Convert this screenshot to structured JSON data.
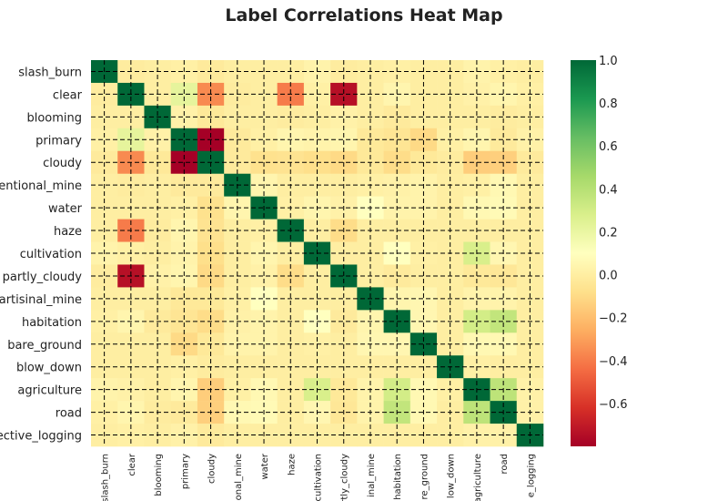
{
  "chart_data": {
    "type": "heatmap",
    "title": "Label Correlations Heat Map",
    "labels": [
      "slash_burn",
      "clear",
      "blooming",
      "primary",
      "cloudy",
      "conventional_mine",
      "water",
      "haze",
      "cultivation",
      "partly_cloudy",
      "artisinal_mine",
      "habitation",
      "bare_ground",
      "blow_down",
      "agriculture",
      "road",
      "selective_logging"
    ],
    "y_tick_labels": [
      "slash_burn",
      "clear",
      "blooming",
      "primary",
      "cloudy",
      "ventional_mine",
      "water",
      "haze",
      "cultivation",
      "partly_cloudy",
      "artisinal_mine",
      "habitation",
      "bare_ground",
      "blow_down",
      "agriculture",
      "road",
      "ective_logging"
    ],
    "x_tick_labels": [
      "slash_burn",
      "clear",
      "blooming",
      "primary",
      "cloudy",
      "onal_mine",
      "water",
      "haze",
      "cultivation",
      "rtly_cloudy",
      "inal_mine",
      "habitation",
      "re_ground",
      "low_down",
      "agriculture",
      "road",
      "e_logging"
    ],
    "matrix": [
      [
        1.0,
        -0.01,
        0.0,
        0.01,
        -0.02,
        0.0,
        0.0,
        0.0,
        0.03,
        -0.01,
        0.0,
        0.01,
        0.0,
        0.0,
        0.03,
        0.01,
        0.0
      ],
      [
        -0.01,
        1.0,
        0.0,
        0.22,
        -0.36,
        -0.01,
        0.0,
        -0.4,
        0.01,
        -0.74,
        0.0,
        0.04,
        0.0,
        0.0,
        0.02,
        0.04,
        0.01
      ],
      [
        0.0,
        0.0,
        1.0,
        0.02,
        -0.03,
        0.0,
        0.0,
        -0.01,
        0.0,
        0.02,
        0.0,
        -0.02,
        0.0,
        0.0,
        0.0,
        -0.01,
        0.0
      ],
      [
        0.01,
        0.22,
        0.02,
        1.0,
        -0.8,
        -0.02,
        0.01,
        0.04,
        0.03,
        0.04,
        -0.03,
        -0.05,
        -0.1,
        0.01,
        0.04,
        -0.02,
        0.02
      ],
      [
        -0.02,
        -0.36,
        -0.03,
        -0.8,
        1.0,
        -0.02,
        -0.07,
        -0.06,
        -0.08,
        -0.1,
        -0.03,
        -0.09,
        -0.03,
        -0.01,
        -0.15,
        -0.14,
        -0.02
      ],
      [
        0.0,
        -0.01,
        0.0,
        -0.02,
        -0.02,
        1.0,
        0.04,
        0.0,
        0.0,
        0.0,
        0.01,
        0.02,
        0.03,
        0.0,
        0.01,
        0.06,
        0.0
      ],
      [
        0.0,
        0.0,
        0.0,
        0.01,
        -0.07,
        0.04,
        1.0,
        0.01,
        0.04,
        0.02,
        0.1,
        0.03,
        0.03,
        0.0,
        0.06,
        0.07,
        0.0
      ],
      [
        0.0,
        -0.4,
        -0.01,
        0.04,
        -0.06,
        0.0,
        0.01,
        1.0,
        0.0,
        -0.09,
        0.0,
        0.0,
        0.0,
        0.0,
        0.0,
        0.0,
        0.0
      ],
      [
        0.03,
        0.01,
        0.0,
        0.03,
        -0.08,
        0.0,
        0.04,
        0.0,
        1.0,
        0.0,
        0.0,
        0.1,
        0.01,
        0.0,
        0.28,
        0.05,
        0.0
      ],
      [
        -0.01,
        -0.74,
        0.02,
        0.04,
        -0.1,
        0.0,
        0.02,
        -0.09,
        0.0,
        1.0,
        0.0,
        -0.02,
        0.0,
        0.0,
        -0.03,
        -0.04,
        0.0
      ],
      [
        0.0,
        0.0,
        0.0,
        -0.03,
        -0.03,
        0.01,
        0.1,
        0.0,
        0.0,
        0.0,
        1.0,
        0.04,
        0.05,
        0.0,
        0.03,
        0.03,
        0.0
      ],
      [
        0.01,
        0.04,
        -0.02,
        -0.05,
        -0.09,
        0.02,
        0.03,
        0.0,
        0.1,
        -0.02,
        0.04,
        1.0,
        0.05,
        0.0,
        0.3,
        0.36,
        0.0
      ],
      [
        0.0,
        0.0,
        0.0,
        -0.1,
        -0.03,
        0.03,
        0.03,
        0.0,
        0.01,
        0.0,
        0.05,
        0.05,
        1.0,
        0.0,
        0.06,
        0.06,
        0.0
      ],
      [
        0.0,
        0.0,
        0.0,
        0.01,
        -0.01,
        0.0,
        0.0,
        0.0,
        0.0,
        0.0,
        0.0,
        0.0,
        0.0,
        1.0,
        0.01,
        0.0,
        0.0
      ],
      [
        0.03,
        0.02,
        0.0,
        0.04,
        -0.15,
        0.01,
        0.06,
        0.0,
        0.28,
        -0.03,
        0.03,
        0.3,
        0.06,
        0.01,
        1.0,
        0.38,
        0.02
      ],
      [
        0.01,
        0.04,
        -0.01,
        -0.02,
        -0.14,
        0.06,
        0.07,
        0.0,
        0.05,
        -0.04,
        0.03,
        0.36,
        0.06,
        0.0,
        0.38,
        1.0,
        0.02
      ],
      [
        0.0,
        0.01,
        0.0,
        0.02,
        -0.02,
        0.0,
        0.0,
        0.0,
        0.0,
        0.0,
        0.0,
        0.0,
        0.0,
        0.0,
        0.02,
        0.02,
        1.0
      ]
    ],
    "vmin": -0.8,
    "vmax": 1.0,
    "colormap": "RdYlGn",
    "colorbar_ticks": [
      1.0,
      0.8,
      0.6,
      0.4,
      0.2,
      0.0,
      -0.2,
      -0.4,
      -0.6
    ],
    "colorbar_tick_labels": [
      "1.0",
      "0.8",
      "0.6",
      "0.4",
      "0.2",
      "0.0",
      "−0.2",
      "−0.4",
      "−0.6"
    ],
    "grid": true,
    "grid_style": "dashed",
    "grid_color": "#000000",
    "diagonal_markers": true
  }
}
